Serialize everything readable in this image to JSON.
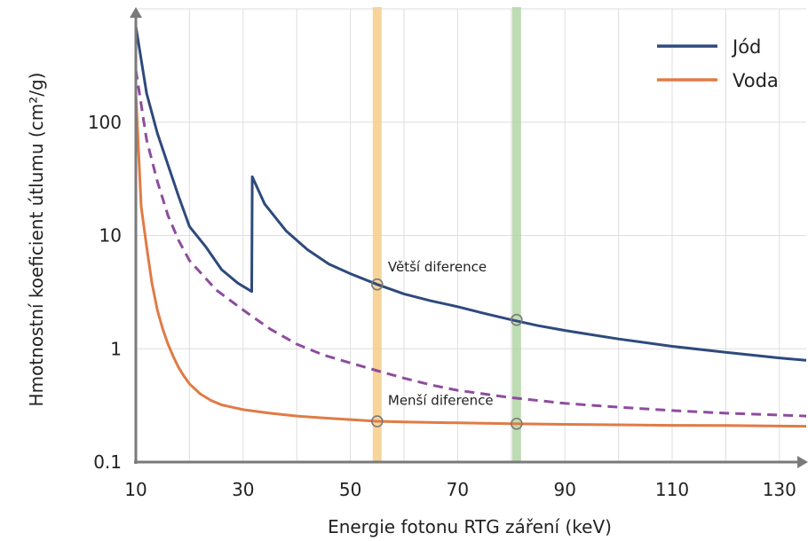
{
  "chart_data": {
    "type": "line",
    "xlabel": "Energie fotonu RTG záření  (keV)",
    "ylabel": "Hmotnostní koeficient útlumu (cm²/g)",
    "xlim": [
      10,
      135
    ],
    "ylim": [
      0.1,
      1000
    ],
    "y_scale": "log",
    "grid": true,
    "legend_position": "top-right",
    "x_ticks": [
      "10",
      "30",
      "50",
      "70",
      "90",
      "110",
      "130"
    ],
    "y_ticks": [
      "0.1",
      "1",
      "10",
      "100"
    ],
    "series": [
      {
        "name": "Jód",
        "color": "#2e4a7d",
        "style": "solid",
        "x": [
          10,
          12,
          14,
          16,
          18,
          20,
          23,
          26,
          29,
          31.6,
          31.7,
          34,
          38,
          42,
          46,
          50,
          55,
          60,
          65,
          70,
          75,
          80,
          85,
          90,
          100,
          110,
          120,
          130,
          135
        ],
        "y": [
          700,
          180,
          80,
          42,
          22,
          12,
          8,
          5,
          3.8,
          3.2,
          33,
          19,
          11,
          7.5,
          5.6,
          4.6,
          3.7,
          3.05,
          2.65,
          2.35,
          2.05,
          1.8,
          1.6,
          1.45,
          1.22,
          1.05,
          0.93,
          0.83,
          0.79
        ]
      },
      {
        "name": "Voda",
        "color": "#e07b45",
        "style": "solid",
        "x": [
          10,
          11,
          12,
          13,
          14,
          15,
          16,
          17,
          18,
          19,
          20,
          22,
          24,
          26,
          30,
          35,
          40,
          45,
          50,
          55,
          60,
          70,
          80,
          90,
          100,
          110,
          120,
          130,
          135
        ],
        "y": [
          180,
          18,
          8,
          3.8,
          2.2,
          1.5,
          1.1,
          0.85,
          0.68,
          0.57,
          0.49,
          0.4,
          0.35,
          0.32,
          0.29,
          0.27,
          0.255,
          0.245,
          0.237,
          0.229,
          0.226,
          0.222,
          0.218,
          0.215,
          0.213,
          0.211,
          0.21,
          0.208,
          0.207
        ]
      },
      {
        "name": "",
        "color": "#8e4c9e",
        "style": "dashed",
        "x": [
          10,
          12,
          14,
          16,
          18,
          20,
          25,
          30,
          35,
          40,
          45,
          50,
          55,
          60,
          65,
          70,
          80,
          90,
          100,
          110,
          120,
          130,
          135
        ],
        "y": [
          290,
          70,
          30,
          15,
          9,
          6,
          3.3,
          2.2,
          1.5,
          1.1,
          0.88,
          0.75,
          0.64,
          0.55,
          0.48,
          0.43,
          0.37,
          0.33,
          0.305,
          0.285,
          0.27,
          0.26,
          0.255
        ]
      }
    ],
    "highlight_bands": [
      {
        "x": 55,
        "color": "#f5cd88"
      },
      {
        "x": 81,
        "color": "#b3d6a6"
      }
    ],
    "markers": [
      {
        "x": 55,
        "y": 3.7
      },
      {
        "x": 81,
        "y": 1.8
      },
      {
        "x": 55,
        "y": 0.229
      },
      {
        "x": 81,
        "y": 0.218
      }
    ],
    "annotations": [
      {
        "text": "Větší diference",
        "x": 57,
        "y": 4.8
      },
      {
        "text": "Menší diference",
        "x": 57,
        "y": 0.32
      }
    ]
  }
}
